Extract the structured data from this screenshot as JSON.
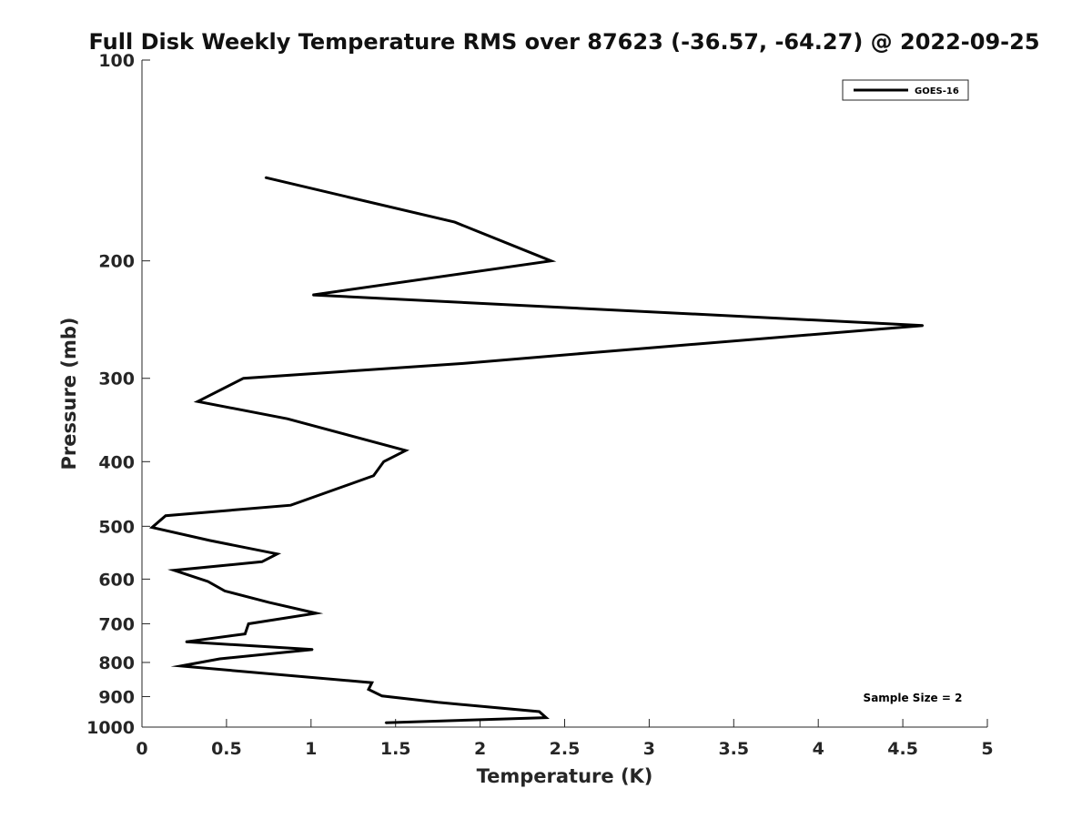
{
  "chart_data": {
    "type": "line",
    "title": "Full Disk Weekly Temperature RMS over 87623 (-36.57, -64.27) @ 2022-09-25",
    "xlabel": "Temperature (K)",
    "ylabel": "Pressure (mb)",
    "xlim": [
      0,
      5
    ],
    "ylim": [
      100,
      1000
    ],
    "y_scale": "log",
    "y_reversed": true,
    "x_ticks": [
      0,
      0.5,
      1,
      1.5,
      2,
      2.5,
      3,
      3.5,
      4,
      4.5,
      5
    ],
    "x_tick_labels": [
      "0",
      "0.5",
      "1",
      "1.5",
      "2",
      "2.5",
      "3",
      "3.5",
      "4",
      "4.5",
      "5"
    ],
    "y_ticks": [
      100,
      200,
      300,
      400,
      500,
      600,
      700,
      800,
      900,
      1000
    ],
    "y_tick_labels": [
      "100",
      "200",
      "300",
      "400",
      "500",
      "600",
      "700",
      "800",
      "900",
      "1000"
    ],
    "grid": false,
    "legend_position": "top-right",
    "series": [
      {
        "name": "GOES-16",
        "color": "#000000",
        "points": [
          {
            "x": 0.73,
            "y": 150
          },
          {
            "x": 1.85,
            "y": 175
          },
          {
            "x": 2.42,
            "y": 200
          },
          {
            "x": 1.01,
            "y": 225
          },
          {
            "x": 4.62,
            "y": 250
          },
          {
            "x": 2.63,
            "y": 275
          },
          {
            "x": 1.9,
            "y": 285
          },
          {
            "x": 0.6,
            "y": 300
          },
          {
            "x": 0.33,
            "y": 325
          },
          {
            "x": 0.86,
            "y": 345
          },
          {
            "x": 1.56,
            "y": 385
          },
          {
            "x": 1.43,
            "y": 400
          },
          {
            "x": 1.37,
            "y": 420
          },
          {
            "x": 0.88,
            "y": 465
          },
          {
            "x": 0.14,
            "y": 482
          },
          {
            "x": 0.06,
            "y": 502
          },
          {
            "x": 0.4,
            "y": 525
          },
          {
            "x": 0.8,
            "y": 550
          },
          {
            "x": 0.71,
            "y": 565
          },
          {
            "x": 0.19,
            "y": 582
          },
          {
            "x": 0.39,
            "y": 605
          },
          {
            "x": 0.49,
            "y": 625
          },
          {
            "x": 0.75,
            "y": 650
          },
          {
            "x": 1.03,
            "y": 675
          },
          {
            "x": 0.63,
            "y": 700
          },
          {
            "x": 0.61,
            "y": 725
          },
          {
            "x": 0.26,
            "y": 745
          },
          {
            "x": 1.01,
            "y": 765
          },
          {
            "x": 0.46,
            "y": 790
          },
          {
            "x": 0.23,
            "y": 810
          },
          {
            "x": 1.36,
            "y": 858
          },
          {
            "x": 1.34,
            "y": 878
          },
          {
            "x": 1.42,
            "y": 898
          },
          {
            "x": 1.75,
            "y": 918
          },
          {
            "x": 2.35,
            "y": 948
          },
          {
            "x": 2.39,
            "y": 968
          },
          {
            "x": 1.44,
            "y": 985
          }
        ]
      }
    ],
    "annotation": "Sample Size = 2"
  }
}
